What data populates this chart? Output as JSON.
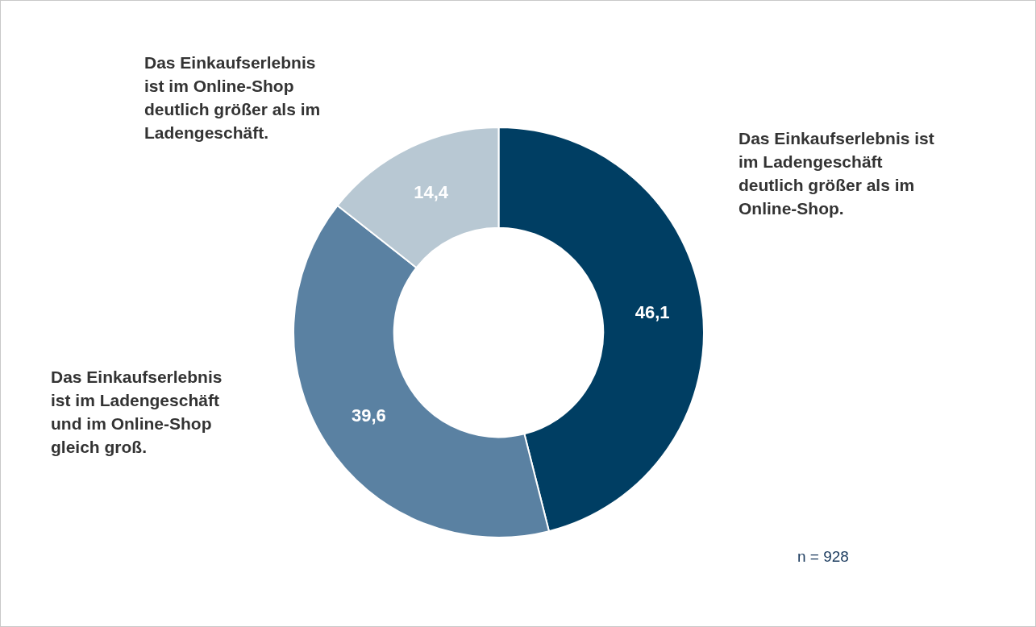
{
  "chart_data": {
    "type": "donut",
    "categories": [
      "Das Einkaufserlebnis ist im Ladengeschäft deutlich größer als im Online-Shop.",
      "Das Einkaufserlebnis ist im Ladengeschäft und im Online-Shop gleich groß.",
      "Das Einkaufserlebnis ist im Online-Shop deutlich größer als im Ladengeschäft."
    ],
    "values": [
      46.1,
      39.6,
      14.4
    ],
    "colors": [
      "#003e63",
      "#5a81a2",
      "#b8c8d3"
    ],
    "value_labels": [
      "46,1",
      "39,6",
      "14,4"
    ],
    "legend": false,
    "annotations": [
      "n = 928"
    ]
  }
}
